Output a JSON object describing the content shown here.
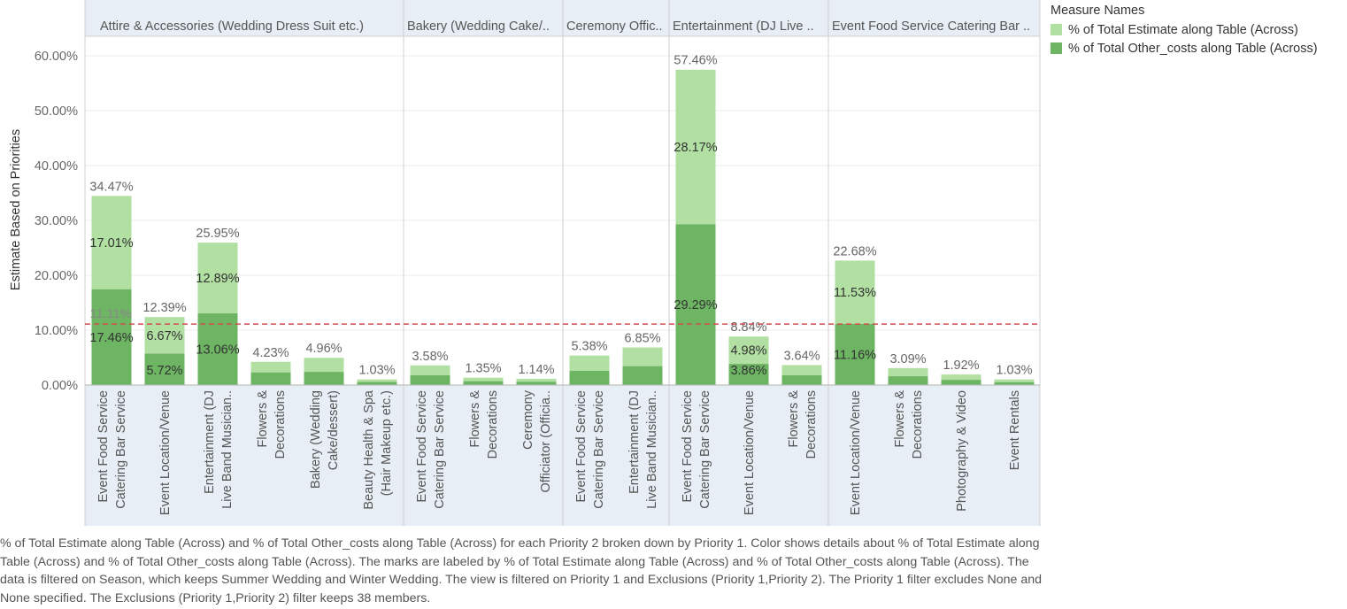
{
  "chart_data": {
    "type": "bar",
    "stacked": true,
    "ylabel": "Estimate Based on Priorities",
    "ylim": [
      0,
      0.6
    ],
    "yticks": [
      "0.00%",
      "10.00%",
      "20.00%",
      "30.00%",
      "40.00%",
      "50.00%",
      "60.00%"
    ],
    "reference_line": 0.1111,
    "reference_label": "11.11%",
    "legend_title": "Measure Names",
    "series": [
      {
        "name": "% of Total Estimate along Table (Across)",
        "color": "#b2e0a2"
      },
      {
        "name": "% of Total Other_costs along Table (Across)",
        "color": "#6db563"
      }
    ],
    "panels": [
      {
        "header": "Attire & Accessories (Wedding Dress Suit etc.)",
        "bars": [
          {
            "category": [
              "Event Food Service",
              "Catering Bar Service"
            ],
            "total": 0.3447,
            "other": 0.1746,
            "total_label": "34.47%",
            "est_label": "17.01%",
            "other_label": "17.46%"
          },
          {
            "category": [
              "Event Location/Venue"
            ],
            "total": 0.1239,
            "other": 0.0572,
            "total_label": "12.39%",
            "est_label": "6.67%",
            "other_label": "5.72%"
          },
          {
            "category": [
              "Entertainment (DJ",
              "Live Band Musician.."
            ],
            "total": 0.2595,
            "other": 0.1306,
            "total_label": "25.95%",
            "est_label": "12.89%",
            "other_label": "13.06%"
          },
          {
            "category": [
              "Flowers &",
              "Decorations"
            ],
            "total": 0.0423,
            "other": 0.023,
            "total_label": "4.23%"
          },
          {
            "category": [
              "Bakery (Wedding",
              "Cake/dessert)"
            ],
            "total": 0.0496,
            "other": 0.024,
            "total_label": "4.96%"
          },
          {
            "category": [
              "Beauty Health & Spa",
              "(Hair Makeup etc.)"
            ],
            "total": 0.0103,
            "other": 0.0055,
            "total_label": "1.03%"
          }
        ]
      },
      {
        "header": "Bakery (Wedding Cake/..",
        "bars": [
          {
            "category": [
              "Event Food Service",
              "Catering Bar Service"
            ],
            "total": 0.0358,
            "other": 0.018,
            "total_label": "3.58%"
          },
          {
            "category": [
              "Flowers &",
              "Decorations"
            ],
            "total": 0.0135,
            "other": 0.007,
            "total_label": "1.35%"
          },
          {
            "category": [
              "Ceremony",
              "Officiator (Officia.."
            ],
            "total": 0.0114,
            "other": 0.006,
            "total_label": "1.14%"
          }
        ]
      },
      {
        "header": "Ceremony Offic..",
        "bars": [
          {
            "category": [
              "Event Food Service",
              "Catering Bar Service"
            ],
            "total": 0.0538,
            "other": 0.026,
            "total_label": "5.38%"
          },
          {
            "category": [
              "Entertainment (DJ",
              "Live Band Musician.."
            ],
            "total": 0.0685,
            "other": 0.0345,
            "total_label": "6.85%"
          }
        ]
      },
      {
        "header": "Entertainment (DJ Live ..",
        "bars": [
          {
            "category": [
              "Event Food Service",
              "Catering Bar Service"
            ],
            "total": 0.5746,
            "other": 0.2929,
            "total_label": "57.46%",
            "est_label": "28.17%",
            "other_label": "29.29%"
          },
          {
            "category": [
              "Event Location/Venue"
            ],
            "total": 0.0884,
            "other": 0.0386,
            "total_label": "8.84%",
            "est_label": "4.98%",
            "other_label": "3.86%"
          },
          {
            "category": [
              "Flowers &",
              "Decorations"
            ],
            "total": 0.0364,
            "other": 0.018,
            "total_label": "3.64%"
          }
        ]
      },
      {
        "header": "Event Food Service Catering Bar ..",
        "bars": [
          {
            "category": [
              "Event Location/Venue"
            ],
            "total": 0.2268,
            "other": 0.1116,
            "total_label": "22.68%",
            "est_label": "11.53%",
            "other_label": "11.16%"
          },
          {
            "category": [
              "Flowers &",
              "Decorations"
            ],
            "total": 0.0309,
            "other": 0.016,
            "total_label": "3.09%"
          },
          {
            "category": [
              "Photography & Video"
            ],
            "total": 0.0192,
            "other": 0.0095,
            "total_label": "1.92%"
          },
          {
            "category": [
              "Event Rentals"
            ],
            "total": 0.0103,
            "other": 0.0052,
            "total_label": "1.03%"
          }
        ]
      }
    ]
  },
  "caption": "% of Total Estimate along Table (Across) and % of Total Other_costs along Table (Across) for each Priority 2 broken down by Priority 1.  Color shows details about % of Total Estimate along Table (Across) and % of Total Other_costs along Table (Across).  The marks are labeled by % of Total Estimate along Table (Across) and % of Total Other_costs along Table (Across). The data is filtered on Season, which keeps Summer Wedding and Winter Wedding. The view is filtered on Priority 1 and Exclusions (Priority 1,Priority 2). The Priority 1 filter excludes None and None specified. The Exclusions (Priority 1,Priority 2) filter keeps 38 members."
}
